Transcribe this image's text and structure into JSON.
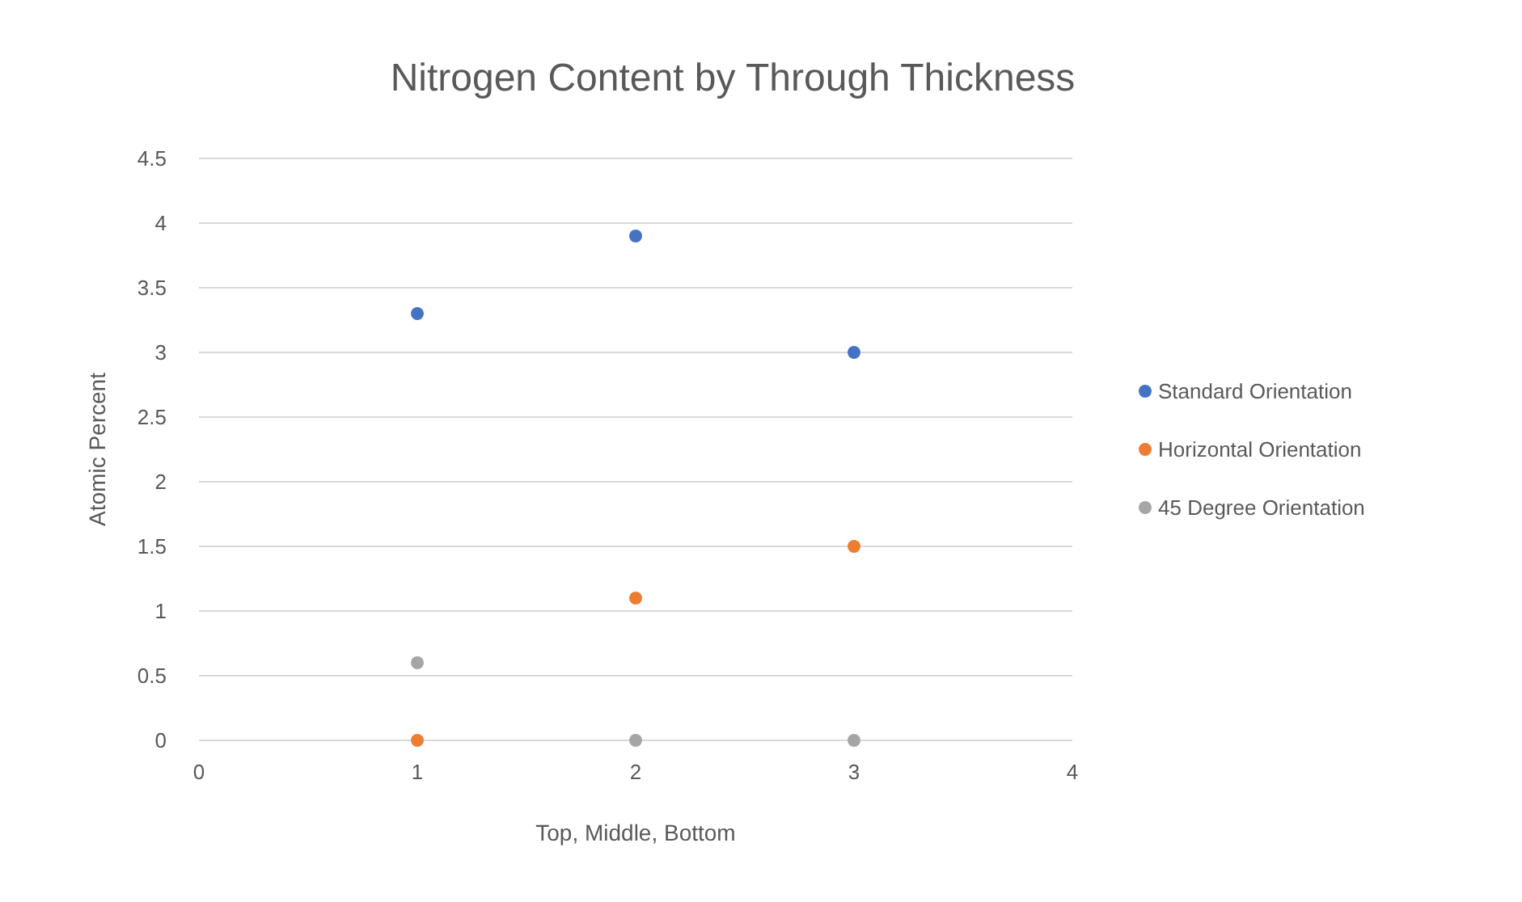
{
  "chart_data": {
    "type": "scatter",
    "title": "Nitrogen Content by Through Thickness",
    "xlabel": "Top, Middle, Bottom",
    "ylabel": "Atomic Percent",
    "x": [
      1,
      2,
      3
    ],
    "xlim": [
      0,
      4
    ],
    "xticks": [
      0,
      1,
      2,
      3,
      4
    ],
    "ylim": [
      0,
      4.5
    ],
    "yticks": [
      0,
      0.5,
      1,
      1.5,
      2,
      2.5,
      3,
      3.5,
      4,
      4.5
    ],
    "grid": "y",
    "legend": "right",
    "marker": "circle",
    "series": [
      {
        "name": "Standard Orientation",
        "color": "#4472c4",
        "values": [
          3.3,
          3.9,
          3.0
        ]
      },
      {
        "name": "Horizontal Orientation",
        "color": "#ed7d31",
        "values": [
          0,
          1.1,
          1.5
        ]
      },
      {
        "name": "45 Degree Orientation",
        "color": "#a5a5a5",
        "values": [
          0.6,
          0,
          0
        ]
      }
    ]
  }
}
